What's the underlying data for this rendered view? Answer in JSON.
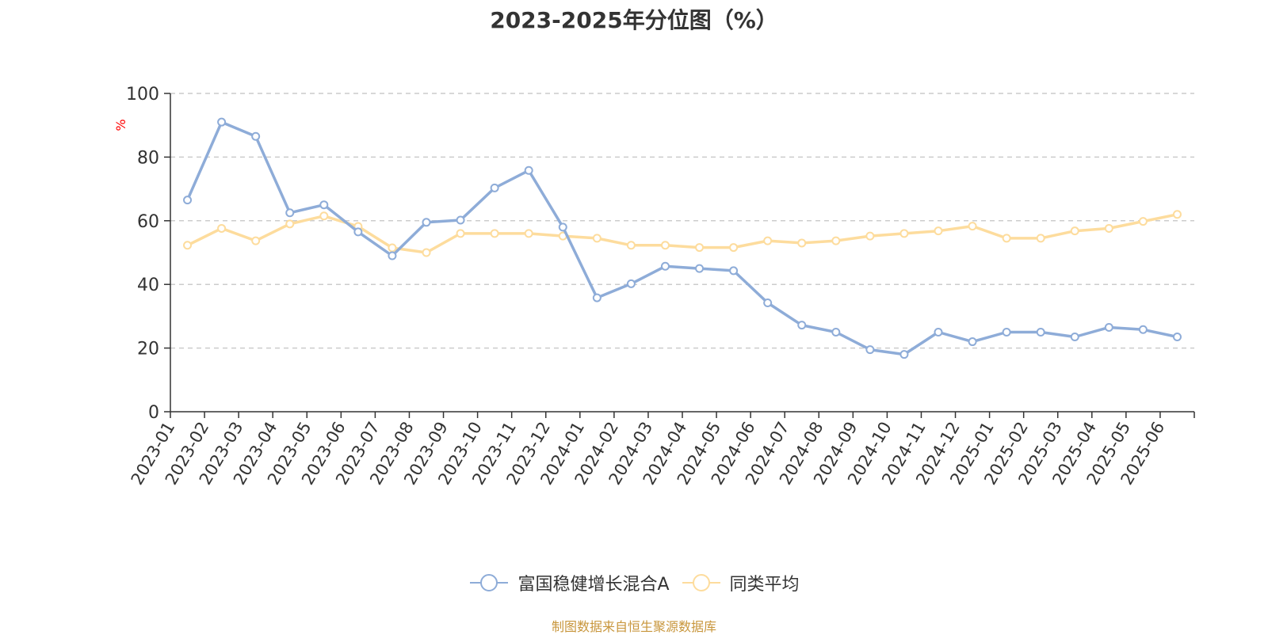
{
  "chart_data": {
    "type": "line",
    "title": "2023-2025年分位图（%）",
    "ylabel": "%",
    "ylim": [
      0,
      100
    ],
    "yticks": [
      0,
      20,
      40,
      60,
      80,
      100
    ],
    "grid": true,
    "legend_position": "bottom",
    "categories": [
      "2023-01",
      "2023-02",
      "2023-03",
      "2023-04",
      "2023-05",
      "2023-06",
      "2023-07",
      "2023-08",
      "2023-09",
      "2023-10",
      "2023-11",
      "2023-12",
      "2024-01",
      "2024-02",
      "2024-03",
      "2024-04",
      "2024-05",
      "2024-06",
      "2024-07",
      "2024-08",
      "2024-09",
      "2024-10",
      "2024-11",
      "2024-12",
      "2025-01",
      "2025-02",
      "2025-03",
      "2025-04",
      "2025-05",
      "2025-06"
    ],
    "series": [
      {
        "name": "富国稳健增长混合A",
        "color": "#8eacd8",
        "values": [
          66.5,
          91,
          86.5,
          62.5,
          65,
          56.5,
          49,
          59.5,
          60.2,
          70.3,
          75.8,
          58,
          35.8,
          40.2,
          45.7,
          45,
          44.3,
          34.2,
          27.2,
          25,
          19.5,
          18,
          25,
          22,
          25,
          25,
          23.5,
          26.5,
          25.8,
          23.5
        ]
      },
      {
        "name": "同类平均",
        "color": "#fddc9d",
        "values": [
          52.3,
          57.6,
          53.7,
          59,
          61.5,
          58.2,
          51.5,
          50,
          56,
          56,
          56,
          55.2,
          54.5,
          52.3,
          52.3,
          51.6,
          51.6,
          53.7,
          53,
          53.7,
          55.2,
          56,
          56.8,
          58.3,
          54.5,
          54.5,
          56.8,
          57.6,
          59.8,
          62
        ]
      }
    ]
  },
  "footer": {
    "source": "制图数据来自恒生聚源数据库",
    "source_color": "#c8963c"
  }
}
